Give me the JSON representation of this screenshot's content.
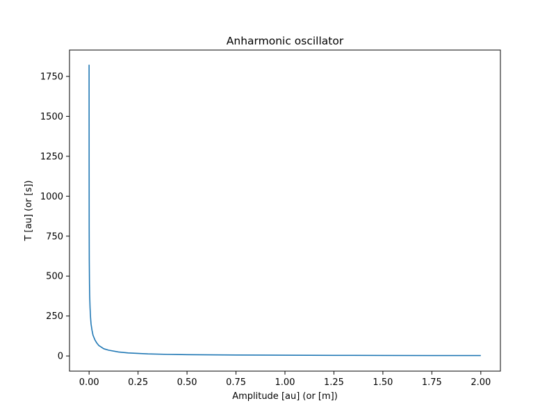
{
  "chart_data": {
    "type": "line",
    "title": "Anharmonic oscillator",
    "xlabel": "Amplitude [au] (or [m])",
    "ylabel": "T [au] (or [s])",
    "xlim": [
      -0.1,
      2.1
    ],
    "ylim": [
      -95,
      1915
    ],
    "xticks": [
      0.0,
      0.25,
      0.5,
      0.75,
      1.0,
      1.25,
      1.5,
      1.75,
      2.0
    ],
    "xtick_labels": [
      "0.00",
      "0.25",
      "0.50",
      "0.75",
      "1.00",
      "1.25",
      "1.50",
      "1.75",
      "2.00"
    ],
    "yticks": [
      0,
      250,
      500,
      750,
      1000,
      1250,
      1500,
      1750
    ],
    "ytick_labels": [
      "0",
      "250",
      "500",
      "750",
      "1000",
      "1250",
      "1500",
      "1750"
    ],
    "grid": false,
    "legend": null,
    "series": [
      {
        "color": "#1f77b4",
        "x": [
          0.0,
          0.0001,
          0.0002,
          0.0005,
          0.001,
          0.002,
          0.003,
          0.005,
          0.0075,
          0.01,
          0.015,
          0.02,
          0.03,
          0.04,
          0.05,
          0.075,
          0.1,
          0.15,
          0.2,
          0.3,
          0.4,
          0.5,
          0.75,
          1.0,
          1.25,
          1.5,
          1.75,
          2.0
        ],
        "y": [
          1823,
          1500,
          1200,
          800,
          600,
          450,
          380,
          300,
          240,
          200,
          160,
          130,
          100,
          80,
          65,
          45,
          36,
          25,
          19,
          13,
          10,
          8,
          6,
          4.8,
          3.8,
          3.2,
          2.7,
          2.4
        ]
      }
    ]
  }
}
